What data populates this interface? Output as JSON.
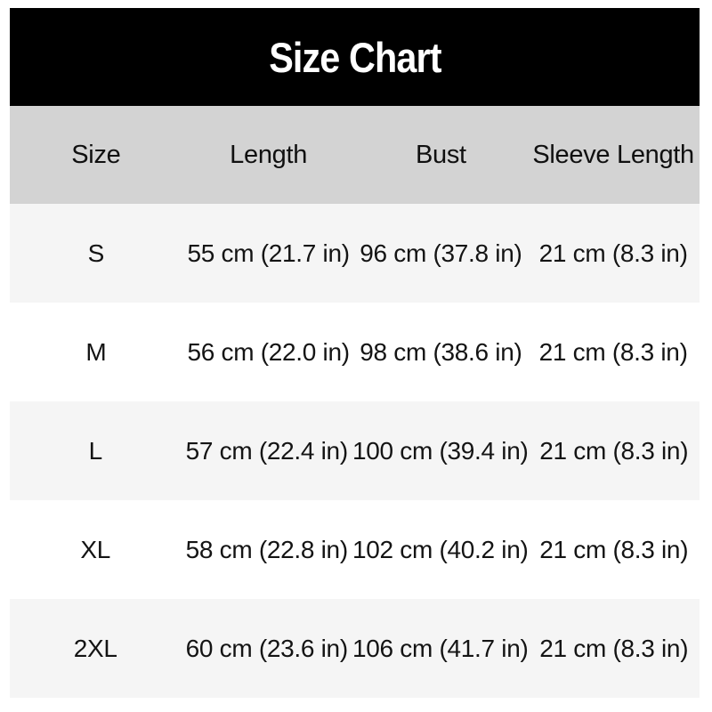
{
  "title": "Size Chart",
  "table": {
    "headers": [
      "Size",
      "Length",
      "Bust",
      "Sleeve Length"
    ],
    "rows": [
      {
        "size": "S",
        "length": "55 cm (21.7 in)",
        "bust": "96 cm (37.8 in)",
        "sleeve_length": "21 cm (8.3 in)"
      },
      {
        "size": "M",
        "length": "56 cm (22.0 in)",
        "bust": "98 cm (38.6 in)",
        "sleeve_length": "21 cm (8.3 in)"
      },
      {
        "size": "L",
        "length": "57 cm (22.4 in)",
        "bust": "100 cm (39.4 in)",
        "sleeve_length": "21 cm (8.3 in)"
      },
      {
        "size": "XL",
        "length": "58 cm (22.8 in)",
        "bust": "102 cm (40.2 in)",
        "sleeve_length": "21 cm (8.3 in)"
      },
      {
        "size": "2XL",
        "length": "60 cm (23.6 in)",
        "bust": "106 cm (41.7 in)",
        "sleeve_length": "21 cm (8.3 in)"
      }
    ]
  },
  "colors": {
    "banner_bg": "#000000",
    "banner_text": "#ffffff",
    "header_bg": "#d3d3d3",
    "stripe_row_bg": "#f5f5f5",
    "plain_row_bg": "#ffffff",
    "text": "#141414"
  },
  "chart_data": {
    "type": "table",
    "title": "Size Chart",
    "columns": [
      "Size",
      "Length",
      "Bust",
      "Sleeve Length"
    ],
    "rows": [
      [
        "S",
        "55 cm (21.7 in)",
        "96 cm (37.8 in)",
        "21 cm (8.3 in)"
      ],
      [
        "M",
        "56 cm (22.0 in)",
        "98 cm (38.6 in)",
        "21 cm (8.3 in)"
      ],
      [
        "L",
        "57 cm (22.4 in)",
        "100 cm (39.4 in)",
        "21 cm (8.3 in)"
      ],
      [
        "XL",
        "58 cm (22.8 in)",
        "102 cm (40.2 in)",
        "21 cm (8.3 in)"
      ],
      [
        "2XL",
        "60 cm (23.6 in)",
        "106 cm (41.7 in)",
        "21 cm (8.3 in)"
      ]
    ]
  }
}
